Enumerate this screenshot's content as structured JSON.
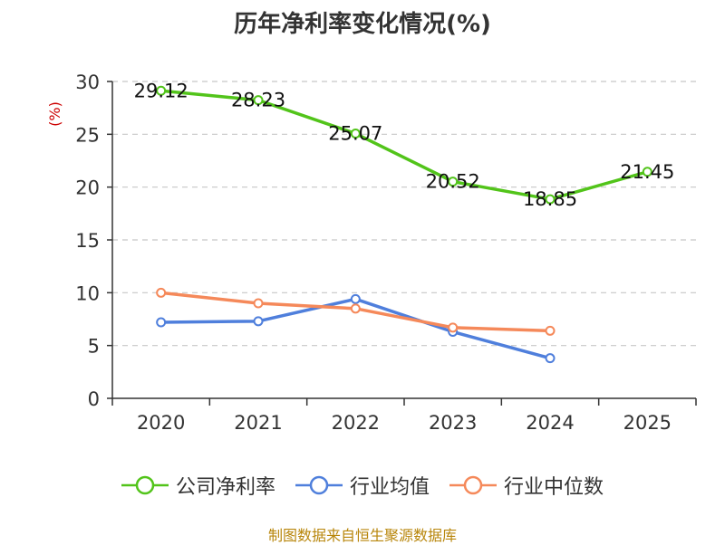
{
  "chart_data": {
    "type": "line",
    "title": "历年净利率变化情况(%)",
    "ylabel": "(%)",
    "xlabel": "",
    "categories": [
      "2020",
      "2021",
      "2022",
      "2023",
      "2024",
      "2025"
    ],
    "ylim": [
      0,
      30
    ],
    "yticks": [
      "0",
      "5",
      "10",
      "15",
      "20",
      "25",
      "30"
    ],
    "grid": true,
    "legend_position": "bottom",
    "series": [
      {
        "name": "公司净利率",
        "color": "#52c41a",
        "show_labels": true,
        "values": [
          29.12,
          28.23,
          25.07,
          20.52,
          18.85,
          21.45
        ],
        "labels": [
          "29.12",
          "28.23",
          "25.07",
          "20.52",
          "18.85",
          "21.45"
        ]
      },
      {
        "name": "行业均值",
        "color": "#4f7fdc",
        "show_labels": false,
        "values": [
          7.2,
          7.3,
          9.4,
          6.3,
          3.8,
          null
        ]
      },
      {
        "name": "行业中位数",
        "color": "#f5895a",
        "show_labels": false,
        "values": [
          10.0,
          9.0,
          8.5,
          6.7,
          6.4,
          null
        ]
      }
    ]
  },
  "source": "制图数据来自恒生聚源数据库"
}
